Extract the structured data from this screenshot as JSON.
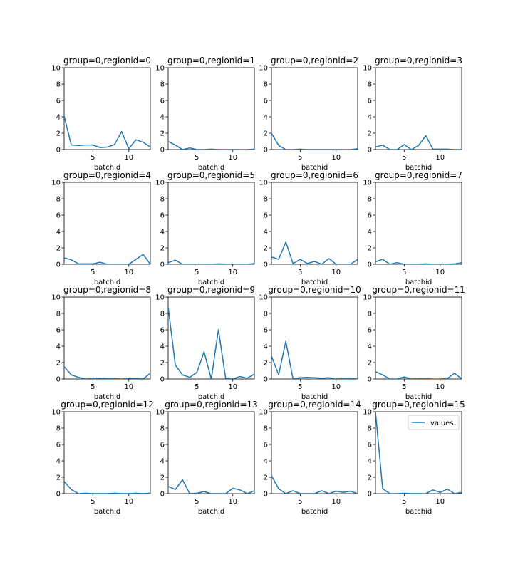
{
  "chart_data": {
    "type": "line",
    "layout": "4x4 grid of subplots",
    "x": [
      1,
      2,
      3,
      4,
      5,
      6,
      7,
      8,
      9,
      10,
      11,
      12,
      13
    ],
    "xlabel": "batchid",
    "ylim": [
      0,
      10
    ],
    "xlim": [
      1,
      13
    ],
    "yticks": [
      0,
      2,
      4,
      6,
      8,
      10
    ],
    "xticks": [
      5,
      10
    ],
    "grid": false,
    "line_color": "#1f77b4",
    "legend": {
      "label": "values",
      "placement": "upper right of last subplot"
    },
    "subplots": [
      {
        "title": "group=0,regionid=0",
        "values": [
          4.1,
          0.55,
          0.5,
          0.55,
          0.55,
          0.25,
          0.3,
          0.6,
          2.2,
          0.1,
          1.2,
          0.9,
          0.3
        ]
      },
      {
        "title": "group=0,regionid=1",
        "values": [
          1.0,
          0.55,
          0.0,
          0.2,
          0.0,
          0.0,
          0.05,
          0.0,
          0.0,
          0.0,
          0.0,
          0.0,
          0.05
        ]
      },
      {
        "title": "group=0,regionid=2",
        "values": [
          2.0,
          0.5,
          0.0,
          0.0,
          0.05,
          0.0,
          0.0,
          0.0,
          0.0,
          0.0,
          0.0,
          0.0,
          0.1
        ]
      },
      {
        "title": "group=0,regionid=3",
        "values": [
          0.3,
          0.55,
          0.0,
          0.0,
          0.6,
          0.0,
          0.5,
          1.7,
          0.05,
          0.05,
          0.05,
          0.0,
          0.0
        ]
      },
      {
        "title": "group=0,regionid=4",
        "values": [
          0.8,
          0.55,
          0.05,
          0.05,
          0.05,
          0.25,
          0.0,
          0.0,
          0.0,
          0.0,
          0.6,
          1.2,
          0.0
        ]
      },
      {
        "title": "group=0,regionid=5",
        "values": [
          0.2,
          0.5,
          0.0,
          0.0,
          0.0,
          0.0,
          0.0,
          0.05,
          0.0,
          0.0,
          0.0,
          0.0,
          0.1
        ]
      },
      {
        "title": "group=0,regionid=6",
        "values": [
          0.9,
          0.6,
          2.7,
          0.1,
          0.6,
          0.1,
          0.35,
          0.0,
          0.7,
          0.0,
          0.0,
          0.0,
          0.6
        ]
      },
      {
        "title": "group=0,regionid=7",
        "values": [
          0.3,
          0.6,
          0.0,
          0.2,
          0.0,
          0.0,
          0.0,
          0.05,
          0.0,
          0.0,
          0.0,
          0.05,
          0.2
        ]
      },
      {
        "title": "group=0,regionid=8",
        "values": [
          1.5,
          0.5,
          0.2,
          0.0,
          0.05,
          0.1,
          0.05,
          0.05,
          0.0,
          0.1,
          0.1,
          0.0,
          0.7
        ]
      },
      {
        "title": "group=0,regionid=9",
        "values": [
          8.8,
          1.7,
          0.5,
          0.2,
          0.8,
          3.3,
          0.0,
          6.0,
          0.1,
          0.0,
          0.3,
          0.1,
          0.6
        ]
      },
      {
        "title": "group=0,regionid=10",
        "values": [
          2.8,
          0.5,
          4.6,
          0.0,
          0.15,
          0.2,
          0.15,
          0.1,
          0.15,
          0.0,
          0.05,
          0.05,
          0.0
        ]
      },
      {
        "title": "group=0,regionid=11",
        "values": [
          0.9,
          0.5,
          0.0,
          0.0,
          0.25,
          0.0,
          0.05,
          0.05,
          0.0,
          0.0,
          0.05,
          0.7,
          0.0
        ]
      },
      {
        "title": "group=0,regionid=12",
        "values": [
          1.5,
          0.5,
          0.0,
          0.05,
          0.0,
          0.0,
          0.0,
          0.05,
          0.0,
          0.0,
          0.05,
          0.0,
          0.05
        ]
      },
      {
        "title": "group=0,regionid=13",
        "values": [
          0.9,
          0.5,
          1.7,
          0.0,
          0.05,
          0.25,
          0.0,
          0.0,
          0.0,
          0.65,
          0.45,
          0.0,
          0.35
        ]
      },
      {
        "title": "group=0,regionid=14",
        "values": [
          2.2,
          0.6,
          0.0,
          0.35,
          0.0,
          0.0,
          0.0,
          0.35,
          0.0,
          0.3,
          0.15,
          0.3,
          0.0
        ]
      },
      {
        "title": "group=0,regionid=15",
        "values": [
          10.0,
          0.6,
          0.0,
          0.0,
          0.05,
          0.0,
          0.0,
          0.0,
          0.45,
          0.15,
          0.55,
          0.0,
          0.15
        ]
      }
    ]
  }
}
